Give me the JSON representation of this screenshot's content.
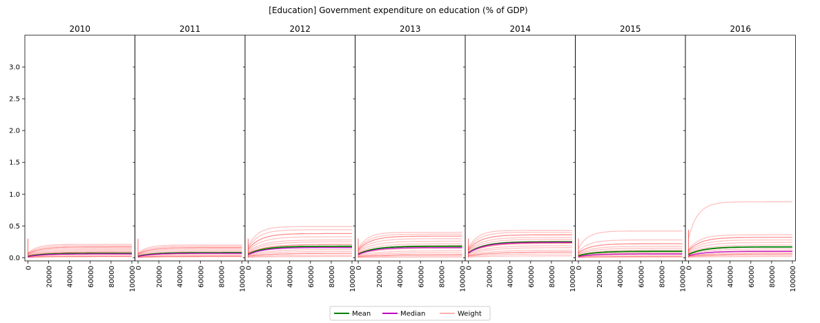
{
  "chart_data": {
    "type": "line",
    "title": "[Education] Government expenditure on education (% of GDP)",
    "panels": [
      {
        "title": "2010",
        "mean_end": 0.07,
        "median_end": 0.06,
        "weights": [
          0.21,
          0.19,
          0.17,
          0.15,
          0.13,
          0.11,
          0.09,
          0.07,
          0.05,
          0.03,
          0.02
        ]
      },
      {
        "title": "2011",
        "mean_end": 0.08,
        "median_end": 0.07,
        "weights": [
          0.2,
          0.18,
          0.16,
          0.14,
          0.12,
          0.1,
          0.08,
          0.06,
          0.04,
          0.03,
          0.02
        ]
      },
      {
        "title": "2012",
        "mean_end": 0.18,
        "median_end": 0.16,
        "weights": [
          0.49,
          0.44,
          0.38,
          0.33,
          0.28,
          0.25,
          0.21,
          0.17,
          0.13,
          0.1,
          0.07,
          0.04,
          0.02
        ]
      },
      {
        "title": "2013",
        "mean_end": 0.18,
        "median_end": 0.16,
        "weights": [
          0.4,
          0.37,
          0.34,
          0.3,
          0.26,
          0.22,
          0.19,
          0.15,
          0.11,
          0.08,
          0.05,
          0.03,
          0.01
        ]
      },
      {
        "title": "2014",
        "mean_end": 0.25,
        "median_end": 0.24,
        "weights": [
          0.43,
          0.4,
          0.36,
          0.32,
          0.29,
          0.26,
          0.23,
          0.19,
          0.16,
          0.12,
          0.09,
          0.06,
          0.03
        ]
      },
      {
        "title": "2015",
        "mean_end": 0.1,
        "median_end": 0.06,
        "weights": [
          0.42,
          0.28,
          0.22,
          0.18,
          0.15,
          0.12,
          0.1,
          0.08,
          0.06,
          0.04,
          0.02,
          0.01
        ]
      },
      {
        "title": "2016",
        "mean_end": 0.17,
        "median_end": 0.1,
        "weights": [
          0.88,
          0.36,
          0.32,
          0.28,
          0.24,
          0.2,
          0.17,
          0.14,
          0.11,
          0.08,
          0.06,
          0.04,
          0.02
        ]
      }
    ],
    "x_ticks": [
      0,
      20000,
      40000,
      60000,
      80000,
      100000
    ],
    "x_tick_labels": [
      "0",
      "20000",
      "40000",
      "60000",
      "80000",
      "100000"
    ],
    "y_ticks": [
      0.0,
      0.5,
      1.0,
      1.5,
      2.0,
      2.5,
      3.0
    ],
    "y_tick_labels": [
      "0.0",
      "0.5",
      "1.0",
      "1.5",
      "2.0",
      "2.5",
      "3.0"
    ],
    "xlim": [
      -3000,
      103000
    ],
    "ylim": [
      -0.05,
      3.5
    ],
    "legend": {
      "placement": "bottom-center",
      "items": [
        {
          "name": "Mean",
          "color": "#008000"
        },
        {
          "name": "Median",
          "color": "#bf00bf"
        },
        {
          "name": "Weight",
          "color": "#ffb3b3"
        }
      ]
    },
    "colors": {
      "mean": "#008000",
      "median": "#bf00bf",
      "weight": "#ff9999",
      "weight_dark": "#ff0000"
    }
  }
}
